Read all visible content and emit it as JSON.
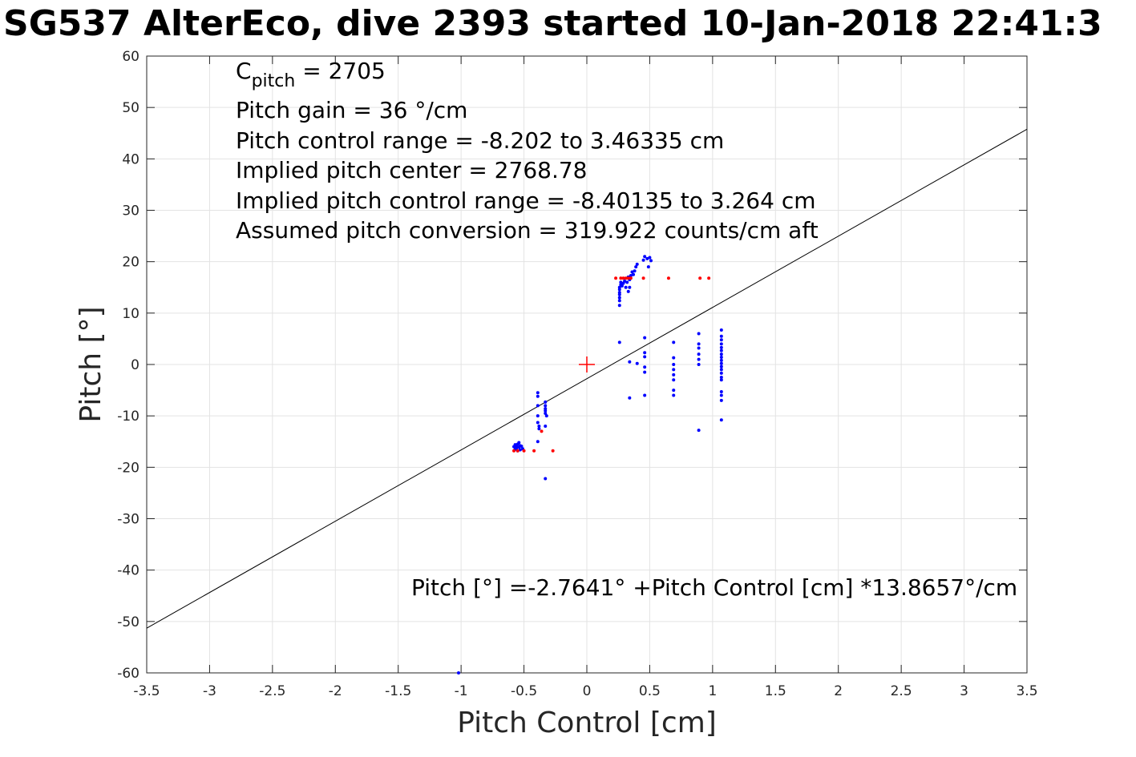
{
  "chart_data": {
    "type": "scatter",
    "title": "SG537 AlterEco, dive 2393 started 10-Jan-2018 22:41:3",
    "xlabel": "Pitch Control [cm]",
    "ylabel": "Pitch [°]",
    "xlim": [
      -3.5,
      3.5
    ],
    "ylim": [
      -60,
      60
    ],
    "xticks": [
      -3.5,
      -3,
      -2.5,
      -2,
      -1.5,
      -1,
      -0.5,
      0,
      0.5,
      1,
      1.5,
      2,
      2.5,
      3,
      3.5
    ],
    "yticks": [
      -60,
      -50,
      -40,
      -30,
      -20,
      -10,
      0,
      10,
      20,
      30,
      40,
      50,
      60
    ],
    "grid": true,
    "annotations": [
      {
        "prefix": "C",
        "sub": "pitch",
        "rest": " = 2705"
      },
      {
        "text": "Pitch gain = 36 °/cm"
      },
      {
        "text": "Pitch control range = -8.202 to 3.46335 cm"
      },
      {
        "text": "Implied pitch center = 2768.78"
      },
      {
        "text": "Implied pitch control range = -8.40135 to 3.264 cm"
      },
      {
        "text": "Assumed pitch conversion = 319.922 counts/cm aft"
      }
    ],
    "fit_label": "Pitch [°] =-2.7641° +Pitch Control [cm] *13.8657°/cm",
    "fit_line": {
      "intercept": -2.7641,
      "slope": 13.8657,
      "color": "#000000"
    },
    "center_marker": {
      "x": 0,
      "y": 0,
      "color": "#ff0000"
    },
    "series": [
      {
        "color": "#0000ff",
        "points": [
          [
            -0.58,
            -16
          ],
          [
            -0.57,
            -15.6
          ],
          [
            -0.56,
            -16.3
          ],
          [
            -0.55,
            -15.5
          ],
          [
            -0.55,
            -16.8
          ],
          [
            -0.54,
            -15.2
          ],
          [
            -0.54,
            -16.1
          ],
          [
            -0.53,
            -15.8
          ],
          [
            -0.53,
            -16.6
          ],
          [
            -0.52,
            -15.9
          ],
          [
            -0.51,
            -16.4
          ],
          [
            -0.56,
            -15.9
          ],
          [
            -0.57,
            -16.5
          ],
          [
            -0.39,
            -5.5
          ],
          [
            -0.39,
            -6.2
          ],
          [
            -0.39,
            -8
          ],
          [
            -0.39,
            -10
          ],
          [
            -0.39,
            -11.3
          ],
          [
            -0.38,
            -12
          ],
          [
            -0.38,
            -12.5
          ],
          [
            -0.39,
            -15
          ],
          [
            -0.33,
            -7.3
          ],
          [
            -0.33,
            -8
          ],
          [
            -0.33,
            -8.6
          ],
          [
            -0.33,
            -9
          ],
          [
            -0.33,
            -9.5
          ],
          [
            -0.32,
            -10
          ],
          [
            -0.33,
            -12
          ],
          [
            -0.33,
            -22.2
          ],
          [
            -1.02,
            -60
          ],
          [
            0.26,
            11.5
          ],
          [
            0.26,
            12.4
          ],
          [
            0.26,
            13
          ],
          [
            0.26,
            13.6
          ],
          [
            0.26,
            14
          ],
          [
            0.26,
            14.6
          ],
          [
            0.26,
            15
          ],
          [
            0.27,
            15.5
          ],
          [
            0.27,
            16
          ],
          [
            0.28,
            15.3
          ],
          [
            0.29,
            15.8
          ],
          [
            0.3,
            16.2
          ],
          [
            0.31,
            15
          ],
          [
            0.32,
            16
          ],
          [
            0.33,
            17
          ],
          [
            0.33,
            14.2
          ],
          [
            0.34,
            15
          ],
          [
            0.34,
            16.5
          ],
          [
            0.35,
            17.3
          ],
          [
            0.36,
            18
          ],
          [
            0.37,
            17.5
          ],
          [
            0.38,
            18.2
          ],
          [
            0.39,
            19
          ],
          [
            0.4,
            19.5
          ],
          [
            0.45,
            20.3
          ],
          [
            0.46,
            21
          ],
          [
            0.48,
            20.6
          ],
          [
            0.49,
            19
          ],
          [
            0.5,
            20.8
          ],
          [
            0.51,
            20.2
          ],
          [
            0.26,
            4.3
          ],
          [
            0.34,
            0.5
          ],
          [
            0.34,
            -6.5
          ],
          [
            0.4,
            0.2
          ],
          [
            0.46,
            5.2
          ],
          [
            0.46,
            2.3
          ],
          [
            0.46,
            1.5
          ],
          [
            0.46,
            -0.5
          ],
          [
            0.46,
            -1.5
          ],
          [
            0.46,
            -6
          ],
          [
            0.69,
            4.3
          ],
          [
            0.69,
            1.3
          ],
          [
            0.69,
            0
          ],
          [
            0.69,
            -1
          ],
          [
            0.69,
            -2
          ],
          [
            0.69,
            -3
          ],
          [
            0.69,
            -5
          ],
          [
            0.69,
            -6
          ],
          [
            0.89,
            6
          ],
          [
            0.89,
            4
          ],
          [
            0.89,
            3.2
          ],
          [
            0.89,
            2
          ],
          [
            0.89,
            1
          ],
          [
            0.89,
            0
          ],
          [
            0.89,
            -12.8
          ],
          [
            1.07,
            6.7
          ],
          [
            1.07,
            5.5
          ],
          [
            1.07,
            4.8
          ],
          [
            1.07,
            4
          ],
          [
            1.07,
            3.3
          ],
          [
            1.07,
            2.7
          ],
          [
            1.07,
            2
          ],
          [
            1.07,
            1.4
          ],
          [
            1.07,
            0.8
          ],
          [
            1.07,
            0.2
          ],
          [
            1.07,
            -0.4
          ],
          [
            1.07,
            -1
          ],
          [
            1.07,
            -1.7
          ],
          [
            1.07,
            -2.5
          ],
          [
            1.07,
            -3
          ],
          [
            1.07,
            -5.3
          ],
          [
            1.07,
            -6
          ],
          [
            1.07,
            -7
          ],
          [
            1.07,
            -10.8
          ]
        ]
      },
      {
        "color": "#ff0000",
        "points": [
          [
            -0.58,
            -16.8
          ],
          [
            -0.55,
            -16.8
          ],
          [
            -0.5,
            -16.8
          ],
          [
            -0.42,
            -16.8
          ],
          [
            -0.36,
            -13
          ],
          [
            -0.27,
            -16.8
          ],
          [
            0.23,
            16.8
          ],
          [
            0.27,
            16.8
          ],
          [
            0.29,
            16.8
          ],
          [
            0.31,
            16.8
          ],
          [
            0.33,
            16.8
          ],
          [
            0.35,
            16.8
          ],
          [
            0.45,
            16.8
          ],
          [
            0.65,
            16.8
          ],
          [
            0.9,
            16.8
          ],
          [
            0.97,
            16.8
          ]
        ]
      }
    ]
  }
}
